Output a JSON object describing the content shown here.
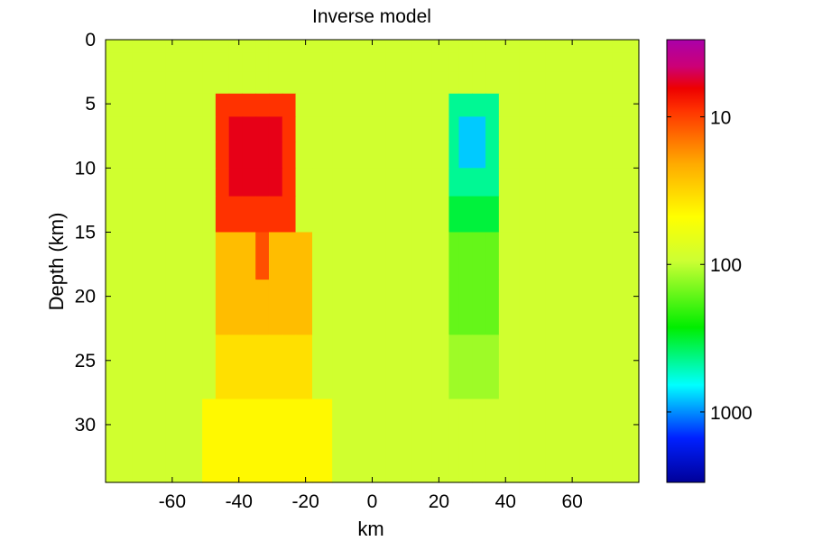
{
  "chart_data": {
    "type": "heatmap",
    "title": "Inverse model",
    "xlabel": "km",
    "ylabel": "Depth (km)",
    "xlim": [
      -80,
      80
    ],
    "ylim": [
      0,
      34.5
    ],
    "y_inverted": true,
    "x_ticks": [
      -60,
      -40,
      -20,
      0,
      20,
      40,
      60
    ],
    "x_tick_labels": [
      "-60",
      "-40",
      "-20",
      "0",
      "20",
      "40",
      "60"
    ],
    "y_ticks": [
      0,
      5,
      10,
      15,
      20,
      25,
      30
    ],
    "y_tick_labels": [
      "0",
      "5",
      "10",
      "15",
      "20",
      "25",
      "30"
    ],
    "colorbar": {
      "scale": "log",
      "reversed": true,
      "range": [
        3,
        3000
      ],
      "ticks": [
        10,
        100,
        1000
      ],
      "tick_labels": [
        "10",
        "100",
        "1000"
      ],
      "colormap": "hsv-like (magenta, red, orange, yellow, green, cyan, blue)"
    },
    "background_value": 90,
    "cell_grid": {
      "x_edges": [
        -80,
        -72,
        -62,
        -51,
        -47,
        -43,
        -39,
        -35,
        -31,
        -27,
        -23,
        -18,
        -12,
        -4,
        4,
        12,
        18,
        23,
        26,
        30,
        34,
        38,
        44,
        52,
        62,
        72,
        80
      ],
      "depth_edges": [
        0,
        1,
        2.5,
        4.2,
        6,
        8,
        10,
        12.2,
        15,
        18.7,
        23,
        28,
        34.5
      ]
    },
    "anomalies": [
      {
        "x_range": [
          -43,
          -27
        ],
        "depth_range": [
          6,
          12.2
        ],
        "value": 6
      },
      {
        "x_range": [
          -45,
          -23
        ],
        "depth_range": [
          4.2,
          15
        ],
        "value": 9
      },
      {
        "x_range": [
          -35,
          -31
        ],
        "depth_range": [
          15,
          18.7
        ],
        "value": 11
      },
      {
        "x_range": [
          -48,
          -20
        ],
        "depth_range": [
          15,
          23
        ],
        "value": 25
      },
      {
        "x_range": [
          -48,
          -20
        ],
        "depth_range": [
          23,
          28
        ],
        "value": 35
      },
      {
        "x_range": [
          -52,
          -12
        ],
        "depth_range": [
          28,
          34.5
        ],
        "value": 45
      },
      {
        "x_range": [
          26,
          34
        ],
        "depth_range": [
          6,
          10
        ],
        "value": 800
      },
      {
        "x_range": [
          23,
          38
        ],
        "depth_range": [
          4.2,
          12.2
        ],
        "value": 450
      },
      {
        "x_range": [
          23,
          38
        ],
        "depth_range": [
          12.2,
          15
        ],
        "value": 330
      },
      {
        "x_range": [
          23,
          38
        ],
        "depth_range": [
          15,
          23
        ],
        "value": 160
      },
      {
        "x_range": [
          23,
          38
        ],
        "depth_range": [
          23,
          28
        ],
        "value": 120
      }
    ]
  }
}
